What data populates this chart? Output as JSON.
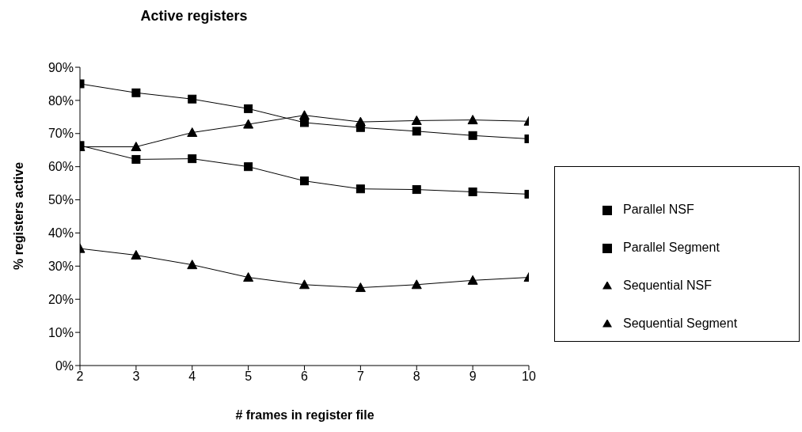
{
  "chart_data": {
    "type": "line",
    "title": "Active registers",
    "xlabel": "# frames in register file",
    "ylabel": "% registers active",
    "x": [
      2,
      3,
      4,
      5,
      6,
      7,
      8,
      9,
      10
    ],
    "xlim": [
      2,
      10
    ],
    "xticks": [
      2,
      3,
      4,
      5,
      6,
      7,
      8,
      9,
      10
    ],
    "ylim": [
      0,
      90
    ],
    "yticks": [
      {
        "value": 0,
        "label": "0%"
      },
      {
        "value": 10,
        "label": "10%"
      },
      {
        "value": 20,
        "label": "20%"
      },
      {
        "value": 30,
        "label": "30%"
      },
      {
        "value": 40,
        "label": "40%"
      },
      {
        "value": 50,
        "label": "50%"
      },
      {
        "value": 60,
        "label": "60%"
      },
      {
        "value": 70,
        "label": "70%"
      },
      {
        "value": 80,
        "label": "80%"
      },
      {
        "value": 90,
        "label": "90%"
      }
    ],
    "grid": false,
    "legend": "right",
    "line_style": "solid",
    "series": [
      {
        "name": "Parallel NSF",
        "color": "#000000",
        "marker": "square",
        "values": [
          85.0,
          82.3,
          80.4,
          77.5,
          73.3,
          71.8,
          70.7,
          69.4,
          68.4
        ]
      },
      {
        "name": "Parallel Segment",
        "color": "#000000",
        "marker": "square",
        "values": [
          66.4,
          62.2,
          62.4,
          60.0,
          55.7,
          53.3,
          53.1,
          52.4,
          51.7
        ]
      },
      {
        "name": "Sequential NSF",
        "color": "#000000",
        "marker": "triangle",
        "values": [
          66.0,
          66.0,
          70.3,
          72.8,
          75.5,
          73.5,
          73.9,
          74.1,
          73.7
        ]
      },
      {
        "name": "Sequential Segment",
        "color": "#000000",
        "marker": "triangle",
        "values": [
          35.3,
          33.3,
          30.4,
          26.6,
          24.4,
          23.5,
          24.4,
          25.7,
          26.6
        ]
      }
    ]
  }
}
